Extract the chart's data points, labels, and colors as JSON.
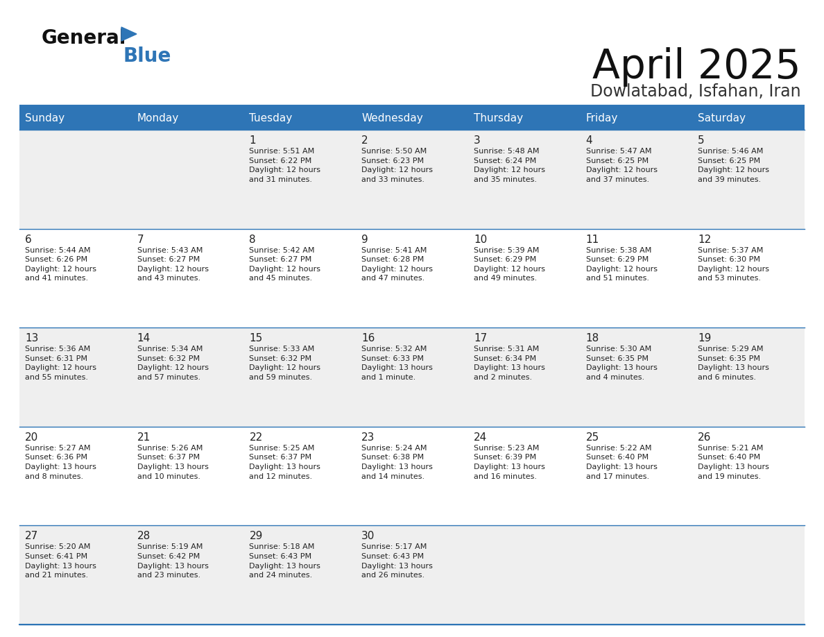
{
  "title": "April 2025",
  "subtitle": "Dowlatabad, Isfahan, Iran",
  "header_bg": "#2E75B6",
  "header_text_color": "#FFFFFF",
  "cell_bg_odd": "#EFEFEF",
  "cell_bg_even": "#FFFFFF",
  "border_color": "#2E75B6",
  "text_color": "#222222",
  "days_of_week": [
    "Sunday",
    "Monday",
    "Tuesday",
    "Wednesday",
    "Thursday",
    "Friday",
    "Saturday"
  ],
  "weeks": [
    [
      {
        "day": "",
        "info": ""
      },
      {
        "day": "",
        "info": ""
      },
      {
        "day": "1",
        "info": "Sunrise: 5:51 AM\nSunset: 6:22 PM\nDaylight: 12 hours\nand 31 minutes."
      },
      {
        "day": "2",
        "info": "Sunrise: 5:50 AM\nSunset: 6:23 PM\nDaylight: 12 hours\nand 33 minutes."
      },
      {
        "day": "3",
        "info": "Sunrise: 5:48 AM\nSunset: 6:24 PM\nDaylight: 12 hours\nand 35 minutes."
      },
      {
        "day": "4",
        "info": "Sunrise: 5:47 AM\nSunset: 6:25 PM\nDaylight: 12 hours\nand 37 minutes."
      },
      {
        "day": "5",
        "info": "Sunrise: 5:46 AM\nSunset: 6:25 PM\nDaylight: 12 hours\nand 39 minutes."
      }
    ],
    [
      {
        "day": "6",
        "info": "Sunrise: 5:44 AM\nSunset: 6:26 PM\nDaylight: 12 hours\nand 41 minutes."
      },
      {
        "day": "7",
        "info": "Sunrise: 5:43 AM\nSunset: 6:27 PM\nDaylight: 12 hours\nand 43 minutes."
      },
      {
        "day": "8",
        "info": "Sunrise: 5:42 AM\nSunset: 6:27 PM\nDaylight: 12 hours\nand 45 minutes."
      },
      {
        "day": "9",
        "info": "Sunrise: 5:41 AM\nSunset: 6:28 PM\nDaylight: 12 hours\nand 47 minutes."
      },
      {
        "day": "10",
        "info": "Sunrise: 5:39 AM\nSunset: 6:29 PM\nDaylight: 12 hours\nand 49 minutes."
      },
      {
        "day": "11",
        "info": "Sunrise: 5:38 AM\nSunset: 6:29 PM\nDaylight: 12 hours\nand 51 minutes."
      },
      {
        "day": "12",
        "info": "Sunrise: 5:37 AM\nSunset: 6:30 PM\nDaylight: 12 hours\nand 53 minutes."
      }
    ],
    [
      {
        "day": "13",
        "info": "Sunrise: 5:36 AM\nSunset: 6:31 PM\nDaylight: 12 hours\nand 55 minutes."
      },
      {
        "day": "14",
        "info": "Sunrise: 5:34 AM\nSunset: 6:32 PM\nDaylight: 12 hours\nand 57 minutes."
      },
      {
        "day": "15",
        "info": "Sunrise: 5:33 AM\nSunset: 6:32 PM\nDaylight: 12 hours\nand 59 minutes."
      },
      {
        "day": "16",
        "info": "Sunrise: 5:32 AM\nSunset: 6:33 PM\nDaylight: 13 hours\nand 1 minute."
      },
      {
        "day": "17",
        "info": "Sunrise: 5:31 AM\nSunset: 6:34 PM\nDaylight: 13 hours\nand 2 minutes."
      },
      {
        "day": "18",
        "info": "Sunrise: 5:30 AM\nSunset: 6:35 PM\nDaylight: 13 hours\nand 4 minutes."
      },
      {
        "day": "19",
        "info": "Sunrise: 5:29 AM\nSunset: 6:35 PM\nDaylight: 13 hours\nand 6 minutes."
      }
    ],
    [
      {
        "day": "20",
        "info": "Sunrise: 5:27 AM\nSunset: 6:36 PM\nDaylight: 13 hours\nand 8 minutes."
      },
      {
        "day": "21",
        "info": "Sunrise: 5:26 AM\nSunset: 6:37 PM\nDaylight: 13 hours\nand 10 minutes."
      },
      {
        "day": "22",
        "info": "Sunrise: 5:25 AM\nSunset: 6:37 PM\nDaylight: 13 hours\nand 12 minutes."
      },
      {
        "day": "23",
        "info": "Sunrise: 5:24 AM\nSunset: 6:38 PM\nDaylight: 13 hours\nand 14 minutes."
      },
      {
        "day": "24",
        "info": "Sunrise: 5:23 AM\nSunset: 6:39 PM\nDaylight: 13 hours\nand 16 minutes."
      },
      {
        "day": "25",
        "info": "Sunrise: 5:22 AM\nSunset: 6:40 PM\nDaylight: 13 hours\nand 17 minutes."
      },
      {
        "day": "26",
        "info": "Sunrise: 5:21 AM\nSunset: 6:40 PM\nDaylight: 13 hours\nand 19 minutes."
      }
    ],
    [
      {
        "day": "27",
        "info": "Sunrise: 5:20 AM\nSunset: 6:41 PM\nDaylight: 13 hours\nand 21 minutes."
      },
      {
        "day": "28",
        "info": "Sunrise: 5:19 AM\nSunset: 6:42 PM\nDaylight: 13 hours\nand 23 minutes."
      },
      {
        "day": "29",
        "info": "Sunrise: 5:18 AM\nSunset: 6:43 PM\nDaylight: 13 hours\nand 24 minutes."
      },
      {
        "day": "30",
        "info": "Sunrise: 5:17 AM\nSunset: 6:43 PM\nDaylight: 13 hours\nand 26 minutes."
      },
      {
        "day": "",
        "info": ""
      },
      {
        "day": "",
        "info": ""
      },
      {
        "day": "",
        "info": ""
      }
    ]
  ],
  "logo_triangle_color": "#2E75B6",
  "logo_general_color": "#111111",
  "logo_blue_color": "#2E75B6",
  "fig_width": 11.88,
  "fig_height": 9.18,
  "dpi": 100
}
